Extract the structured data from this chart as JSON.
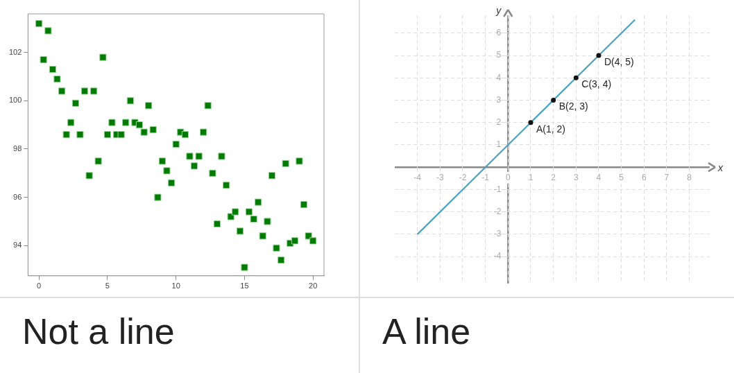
{
  "chart_data": [
    {
      "type": "scatter",
      "x": [
        0,
        0.33,
        0.67,
        1,
        1.33,
        1.67,
        2,
        2.33,
        2.67,
        3,
        3.33,
        3.67,
        4,
        4.33,
        4.67,
        5,
        5.33,
        5.67,
        6,
        6.33,
        6.67,
        7,
        7.33,
        7.67,
        8,
        8.33,
        8.67,
        9,
        9.33,
        9.67,
        10,
        10.33,
        10.67,
        11,
        11.33,
        11.67,
        12,
        12.33,
        12.67,
        13,
        13.33,
        13.67,
        14,
        14.33,
        14.67,
        15,
        15.33,
        15.67,
        16,
        16.33,
        16.67,
        17,
        17.33,
        17.67,
        18,
        18.33,
        18.67,
        19,
        19.33,
        19.67,
        20
      ],
      "values": [
        103.2,
        101.7,
        102.9,
        101.3,
        100.9,
        100.4,
        98.6,
        99.1,
        99.9,
        98.6,
        100.4,
        96.9,
        100.4,
        97.5,
        101.8,
        98.6,
        99.1,
        98.6,
        98.6,
        99.1,
        100.0,
        99.1,
        99.0,
        98.7,
        99.8,
        98.8,
        96.0,
        97.5,
        97.1,
        96.6,
        98.2,
        98.7,
        98.6,
        97.7,
        97.3,
        97.7,
        98.7,
        99.8,
        97.0,
        94.9,
        97.7,
        96.5,
        95.2,
        95.4,
        94.6,
        93.1,
        95.4,
        95.1,
        95.8,
        94.4,
        95.0,
        96.9,
        93.9,
        93.4,
        97.4,
        94.1,
        94.2,
        97.5,
        95.7,
        94.4,
        94.2
      ],
      "color": "#007a00",
      "marker": "square",
      "xlim": [
        -0.8,
        20.8
      ],
      "ylim": [
        92.75,
        103.6
      ],
      "xticks": [
        0,
        5,
        10,
        15,
        20
      ],
      "yticks": [
        94,
        96,
        98,
        100,
        102
      ],
      "grid": false,
      "annotations": [
        "Not a line"
      ]
    },
    {
      "type": "line",
      "xlabel": "x",
      "ylabel": "y",
      "xlim": [
        -5,
        8.9
      ],
      "ylim": [
        -5.2,
        6.8
      ],
      "xticks": [
        -4,
        -3,
        -2,
        -1,
        0,
        1,
        2,
        3,
        4,
        5,
        6,
        7,
        8
      ],
      "yticks": [
        -4,
        -3,
        -2,
        -1,
        1,
        2,
        3,
        4,
        5,
        6
      ],
      "grid": true,
      "series": [
        {
          "type": "line",
          "x": [
            -4,
            5.6
          ],
          "values": [
            -3,
            6.6
          ],
          "color": "#4ba3bf",
          "marker": "none"
        },
        {
          "type": "scatter",
          "x": [
            1,
            2,
            3,
            4
          ],
          "values": [
            2,
            3,
            4,
            5
          ],
          "color": "#111111",
          "marker": "circle"
        }
      ],
      "annotations": [
        {
          "text": "A(1, 2)",
          "x": 1,
          "y": 2
        },
        {
          "text": "B(2, 3)",
          "x": 2,
          "y": 3
        },
        {
          "text": "C(3, 4)",
          "x": 3,
          "y": 4
        },
        {
          "text": "D(4, 5)",
          "x": 4,
          "y": 5
        },
        "A line"
      ]
    }
  ]
}
